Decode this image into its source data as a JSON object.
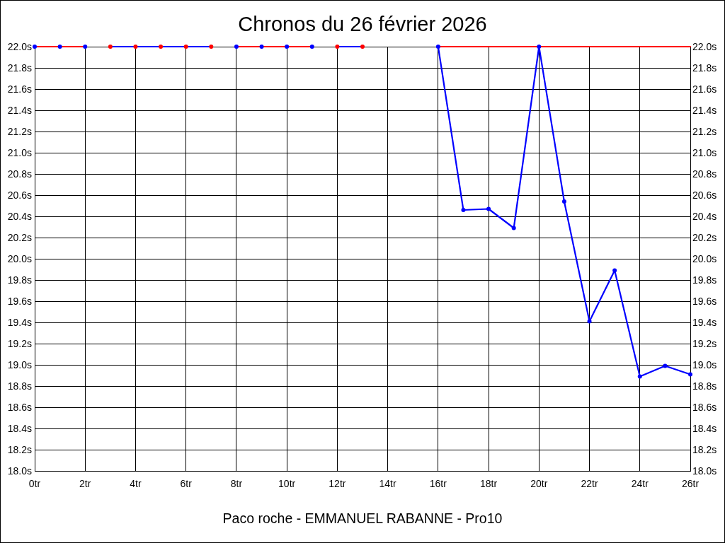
{
  "chart_data": {
    "type": "line",
    "title": "Chronos du 26 février 2026",
    "xlabel": "Paco roche - EMMANUEL RABANNE - Pro10",
    "xlim": [
      0,
      26
    ],
    "xticks": [
      {
        "value": 0,
        "label": "0tr"
      },
      {
        "value": 2,
        "label": "2tr"
      },
      {
        "value": 4,
        "label": "4tr"
      },
      {
        "value": 6,
        "label": "6tr"
      },
      {
        "value": 8,
        "label": "8tr"
      },
      {
        "value": 10,
        "label": "10tr"
      },
      {
        "value": 12,
        "label": "12tr"
      },
      {
        "value": 14,
        "label": "14tr"
      },
      {
        "value": 16,
        "label": "16tr"
      },
      {
        "value": 18,
        "label": "18tr"
      },
      {
        "value": 20,
        "label": "20tr"
      },
      {
        "value": 22,
        "label": "22tr"
      },
      {
        "value": 24,
        "label": "24tr"
      },
      {
        "value": 26,
        "label": "26tr"
      }
    ],
    "ylim": [
      18,
      22
    ],
    "yticks": [
      {
        "value": 18,
        "label": "18.0s"
      },
      {
        "value": 18.2,
        "label": "18.2s"
      },
      {
        "value": 18.4,
        "label": "18.4s"
      },
      {
        "value": 18.6,
        "label": "18.6s"
      },
      {
        "value": 18.8,
        "label": "18.8s"
      },
      {
        "value": 19,
        "label": "19.0s"
      },
      {
        "value": 19.2,
        "label": "19.2s"
      },
      {
        "value": 19.4,
        "label": "19.4s"
      },
      {
        "value": 19.6,
        "label": "19.6s"
      },
      {
        "value": 19.8,
        "label": "19.8s"
      },
      {
        "value": 20,
        "label": "20.0s"
      },
      {
        "value": 20.2,
        "label": "20.2s"
      },
      {
        "value": 20.4,
        "label": "20.4s"
      },
      {
        "value": 20.6,
        "label": "20.6s"
      },
      {
        "value": 20.8,
        "label": "20.8s"
      },
      {
        "value": 21,
        "label": "21.0s"
      },
      {
        "value": 21.2,
        "label": "21.2s"
      },
      {
        "value": 21.4,
        "label": "21.4s"
      },
      {
        "value": 21.6,
        "label": "21.6s"
      },
      {
        "value": 21.8,
        "label": "21.8s"
      },
      {
        "value": 22,
        "label": "22.0s"
      }
    ],
    "y2lim": [
      18,
      22
    ],
    "y2ticks": [
      {
        "value": 18,
        "label": "18.0s"
      },
      {
        "value": 18.2,
        "label": "18.2s"
      },
      {
        "value": 18.4,
        "label": "18.4s"
      },
      {
        "value": 18.6,
        "label": "18.6s"
      },
      {
        "value": 18.8,
        "label": "18.8s"
      },
      {
        "value": 19,
        "label": "19.0s"
      },
      {
        "value": 19.2,
        "label": "19.2s"
      },
      {
        "value": 19.4,
        "label": "19.4s"
      },
      {
        "value": 19.6,
        "label": "19.6s"
      },
      {
        "value": 19.8,
        "label": "19.8s"
      },
      {
        "value": 20,
        "label": "20.0s"
      },
      {
        "value": 20.2,
        "label": "20.2s"
      },
      {
        "value": 20.4,
        "label": "20.4s"
      },
      {
        "value": 20.6,
        "label": "20.6s"
      },
      {
        "value": 20.8,
        "label": "20.8s"
      },
      {
        "value": 21,
        "label": "21.0s"
      },
      {
        "value": 21.2,
        "label": "21.2s"
      },
      {
        "value": 21.4,
        "label": "21.4s"
      },
      {
        "value": 21.6,
        "label": "21.6s"
      },
      {
        "value": 21.8,
        "label": "21.8s"
      },
      {
        "value": 22,
        "label": "22.0s"
      }
    ],
    "grid": true,
    "marker": "circle",
    "line_style": "solid",
    "series": [
      {
        "color": "#ff0000",
        "colors": [
          "#0000ff",
          "#0000ff",
          "#0000ff"
        ],
        "x": [
          0,
          1,
          2
        ],
        "values": [
          22,
          22,
          22
        ]
      },
      {
        "color": "#0000ff",
        "colors": [
          "#ff0000",
          "#ff0000",
          "#ff0000",
          "#ff0000",
          "#ff0000"
        ],
        "x": [
          3,
          4,
          5,
          6,
          7
        ],
        "values": [
          22,
          22,
          22,
          22,
          22
        ]
      },
      {
        "color": "#ff0000",
        "colors": [
          "#0000ff",
          "#0000ff",
          "#0000ff",
          "#0000ff"
        ],
        "x": [
          8,
          9,
          10,
          11
        ],
        "values": [
          22,
          22,
          22,
          22
        ]
      },
      {
        "color": "#0000ff",
        "colors": [
          "#ff0000",
          "#ff0000"
        ],
        "x": [
          12,
          13
        ],
        "values": [
          22,
          22
        ]
      },
      {
        "color": "#ff0000",
        "marker": "none",
        "x": [
          16,
          26
        ],
        "values": [
          22,
          22
        ]
      },
      {
        "color": "#0000ff",
        "x": [
          16,
          17,
          18,
          19,
          20,
          21,
          22,
          23,
          24,
          25,
          26
        ],
        "values": [
          22,
          20.46,
          20.47,
          20.29,
          22,
          20.54,
          19.41,
          19.89,
          18.89,
          18.99,
          18.91
        ]
      }
    ]
  }
}
